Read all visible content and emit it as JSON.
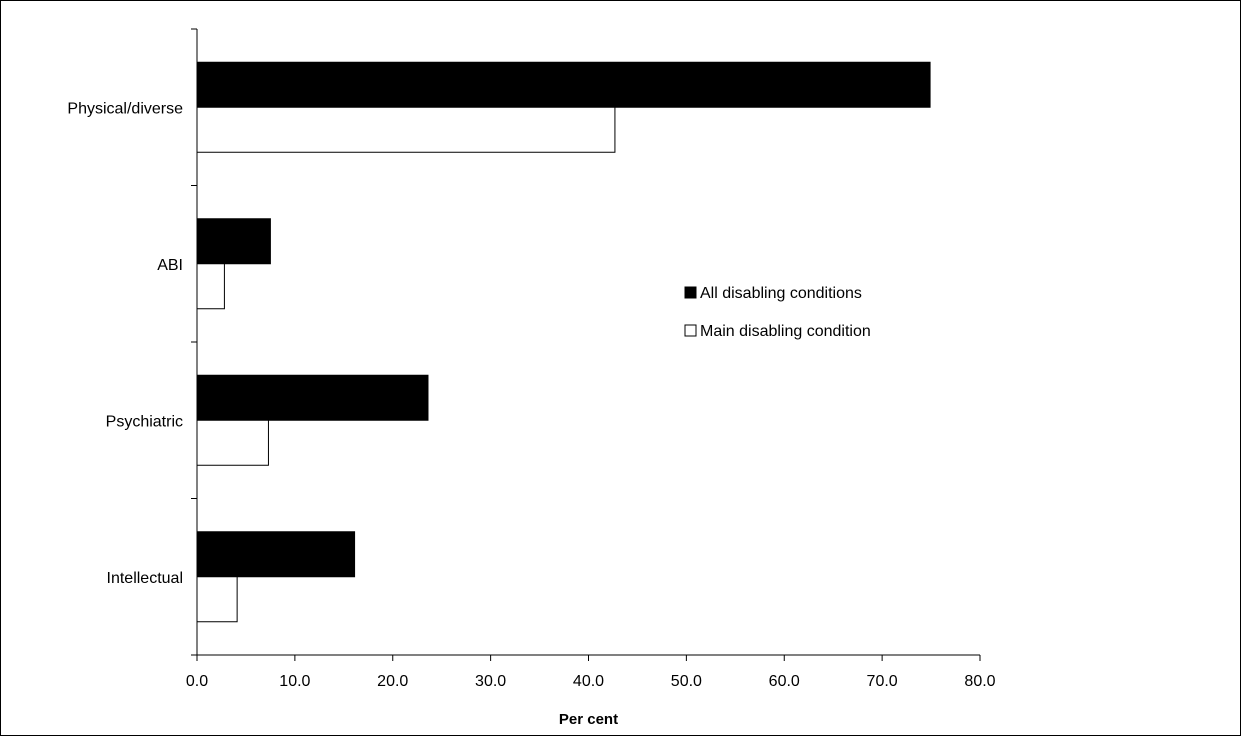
{
  "chart_data": {
    "type": "bar",
    "orientation": "horizontal",
    "title": "",
    "xlabel": "Per cent",
    "ylabel": "",
    "xlim": [
      0,
      80
    ],
    "x_ticks": [
      0,
      10,
      20,
      30,
      40,
      50,
      60,
      70,
      80
    ],
    "x_tick_labels": [
      "0.0",
      "10.0",
      "20.0",
      "30.0",
      "40.0",
      "50.0",
      "60.0",
      "70.0",
      "80.0"
    ],
    "categories": [
      "Physical/diverse",
      "ABI",
      "Psychiatric",
      "Intellectual"
    ],
    "series": [
      {
        "name": "All disabling conditions",
        "values": [
          74.9,
          7.5,
          23.6,
          16.1
        ],
        "color": "#000000"
      },
      {
        "name": "Main disabling condition",
        "values": [
          42.7,
          2.8,
          7.3,
          4.1
        ],
        "color": "#ffffff"
      }
    ],
    "grid": false,
    "legend_position": "right-center"
  }
}
